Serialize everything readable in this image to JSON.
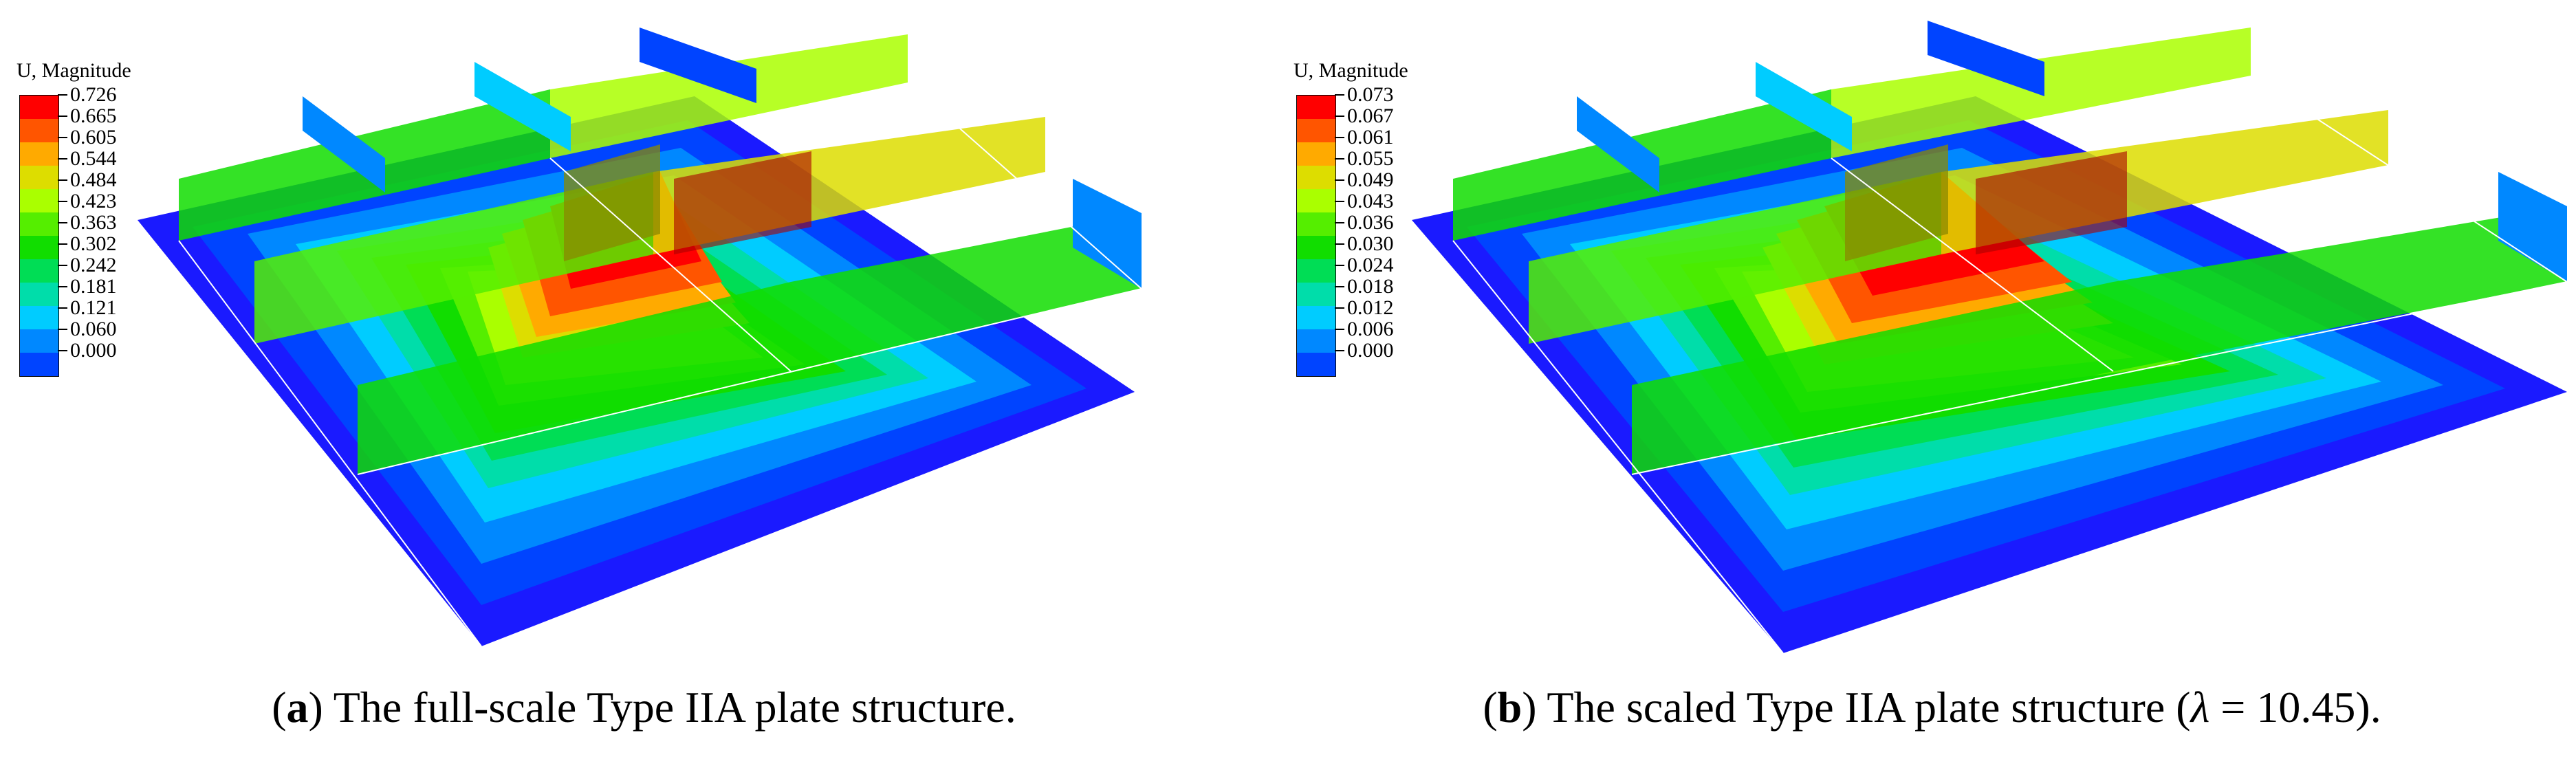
{
  "figure": {
    "panels": [
      {
        "id": "a",
        "legend": {
          "title": "U, Magnitude",
          "ticks": [
            "0.726",
            "0.665",
            "0.605",
            "0.544",
            "0.484",
            "0.423",
            "0.363",
            "0.302",
            "0.242",
            "0.181",
            "0.121",
            "0.060",
            "0.000"
          ]
        },
        "caption": {
          "open": "(",
          "letter": "a",
          "close": ") ",
          "text": "The full-scale Type IIA plate structure."
        }
      },
      {
        "id": "b",
        "legend": {
          "title": "U, Magnitude",
          "ticks": [
            "0.073",
            "0.067",
            "0.061",
            "0.055",
            "0.049",
            "0.043",
            "0.036",
            "0.030",
            "0.024",
            "0.018",
            "0.012",
            "0.006",
            "0.000"
          ]
        },
        "caption": {
          "open": "(",
          "letter": "b",
          "close": ") ",
          "text": "The scaled Type IIA plate structure (",
          "lambda": "λ",
          "lambda_value": " = 10.45)."
        }
      }
    ]
  },
  "colors": {
    "contour_scale": [
      "#ff0000",
      "#ff5500",
      "#ffaa00",
      "#dddd00",
      "#aaff00",
      "#55ee00",
      "#11dd00",
      "#00dd55",
      "#00ddaa",
      "#00ccff",
      "#0088ff",
      "#0044ff",
      "#0000cc"
    ],
    "base_plate": "#1a1aff",
    "deep_blue": "#0a0ad0",
    "stiffener_shade": "#8a8a00"
  }
}
